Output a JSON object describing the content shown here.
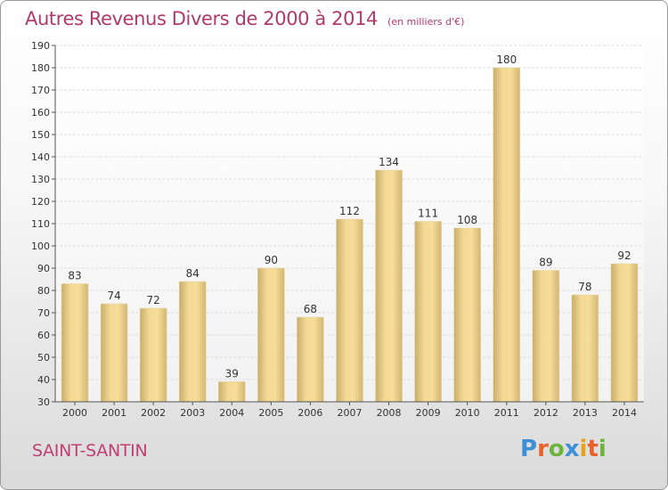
{
  "header": {
    "title": "Autres Revenus Divers de 2000 à 2014",
    "subtitle": "(en milliers d'€)"
  },
  "location": "SAINT-SANTIN",
  "brand": {
    "letters": [
      "P",
      "r",
      "o",
      "x",
      "i",
      "t",
      "i"
    ],
    "colors": [
      "#3d8fd6",
      "#e8622a",
      "#6cb33f",
      "#3d8fd6",
      "#e8a21a",
      "#e8622a",
      "#6cb33f"
    ]
  },
  "colors": {
    "bar_light": "#f4da92",
    "bar_dark": "#c4a868",
    "title": "#b03a6a"
  },
  "chart_data": {
    "type": "bar",
    "title": "Autres Revenus Divers de 2000 à 2014",
    "subtitle": "(en milliers d'€)",
    "xlabel": "",
    "ylabel": "",
    "categories": [
      "2000",
      "2001",
      "2002",
      "2003",
      "2004",
      "2005",
      "2006",
      "2007",
      "2008",
      "2009",
      "2010",
      "2011",
      "2012",
      "2013",
      "2014"
    ],
    "values": [
      83,
      74,
      72,
      84,
      39,
      90,
      68,
      112,
      134,
      111,
      108,
      180,
      89,
      78,
      92
    ],
    "ylim": [
      30,
      190
    ],
    "yticks": [
      30,
      40,
      50,
      60,
      70,
      80,
      90,
      100,
      110,
      120,
      130,
      140,
      150,
      160,
      170,
      180,
      190
    ],
    "grid": true
  }
}
